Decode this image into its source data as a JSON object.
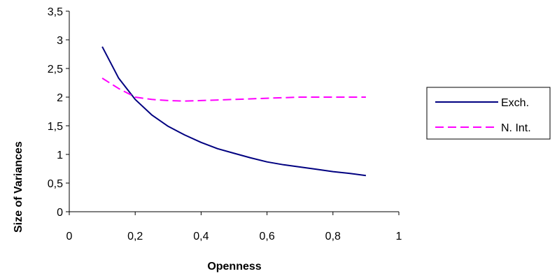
{
  "chart_data": {
    "type": "line",
    "xlabel": "Openness",
    "ylabel": "Size of Variances",
    "xlim": [
      0,
      1
    ],
    "ylim": [
      0,
      3.5
    ],
    "xticks": [
      {
        "value": 0,
        "label": "0"
      },
      {
        "value": 0.2,
        "label": "0,2"
      },
      {
        "value": 0.4,
        "label": "0,4"
      },
      {
        "value": 0.6,
        "label": "0,6"
      },
      {
        "value": 0.8,
        "label": "0,8"
      },
      {
        "value": 1,
        "label": "1"
      }
    ],
    "yticks": [
      {
        "value": 0,
        "label": "0"
      },
      {
        "value": 0.5,
        "label": "0,5"
      },
      {
        "value": 1,
        "label": "1"
      },
      {
        "value": 1.5,
        "label": "1,5"
      },
      {
        "value": 2,
        "label": "2"
      },
      {
        "value": 2.5,
        "label": "2,5"
      },
      {
        "value": 3,
        "label": "3"
      },
      {
        "value": 3.5,
        "label": "3,5"
      }
    ],
    "grid": false,
    "legend_position": "right",
    "series": [
      {
        "name": "Exch.",
        "color": "#000080",
        "dash": "solid",
        "x": [
          0.1,
          0.15,
          0.2,
          0.25,
          0.3,
          0.35,
          0.4,
          0.45,
          0.5,
          0.55,
          0.6,
          0.65,
          0.7,
          0.75,
          0.8,
          0.85,
          0.9
        ],
        "y": [
          2.88,
          2.33,
          1.96,
          1.69,
          1.49,
          1.34,
          1.21,
          1.1,
          1.02,
          0.94,
          0.87,
          0.82,
          0.78,
          0.74,
          0.7,
          0.67,
          0.63
        ]
      },
      {
        "name": "N. Int.",
        "color": "#FF00FF",
        "dash": "dashed",
        "x": [
          0.1,
          0.15,
          0.2,
          0.25,
          0.3,
          0.35,
          0.4,
          0.45,
          0.5,
          0.55,
          0.6,
          0.65,
          0.7,
          0.75,
          0.8,
          0.85,
          0.9
        ],
        "y": [
          2.33,
          2.15,
          2.0,
          1.96,
          1.94,
          1.93,
          1.94,
          1.95,
          1.96,
          1.97,
          1.98,
          1.99,
          2.0,
          2.0,
          2.0,
          2.0,
          2.0
        ]
      }
    ]
  }
}
